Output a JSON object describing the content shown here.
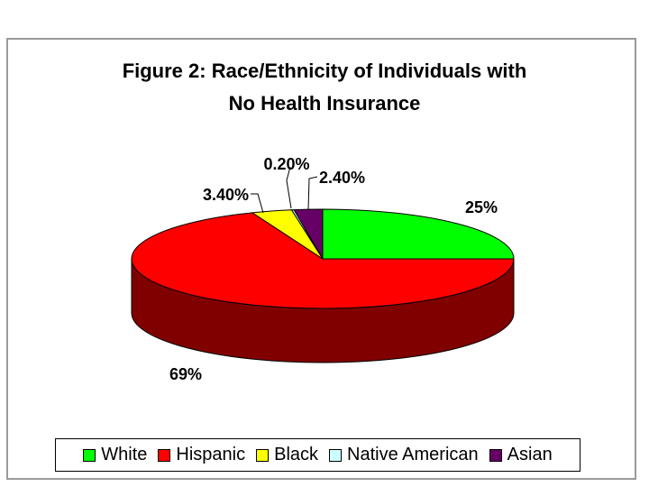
{
  "chart_data": {
    "type": "pie",
    "title": "Figure 2: Race/Ethnicity of Individuals with No Health Insurance",
    "title_lines": [
      "Figure 2: Race/Ethnicity of Individuals with",
      "No Health Insurance"
    ],
    "slices": [
      {
        "name": "White",
        "value": 25,
        "label": "25%",
        "color": "#00ff00"
      },
      {
        "name": "Hispanic",
        "value": 69,
        "label": "69%",
        "color": "#ff0000"
      },
      {
        "name": "Black",
        "value": 3.4,
        "label": "3.40%",
        "color": "#ffff00"
      },
      {
        "name": "Native American",
        "value": 0.2,
        "label": "0.20%",
        "color": "#ccffff"
      },
      {
        "name": "Asian",
        "value": 2.4,
        "label": "2.40%",
        "color": "#660066"
      }
    ],
    "legend_position": "bottom",
    "style": "3d"
  }
}
